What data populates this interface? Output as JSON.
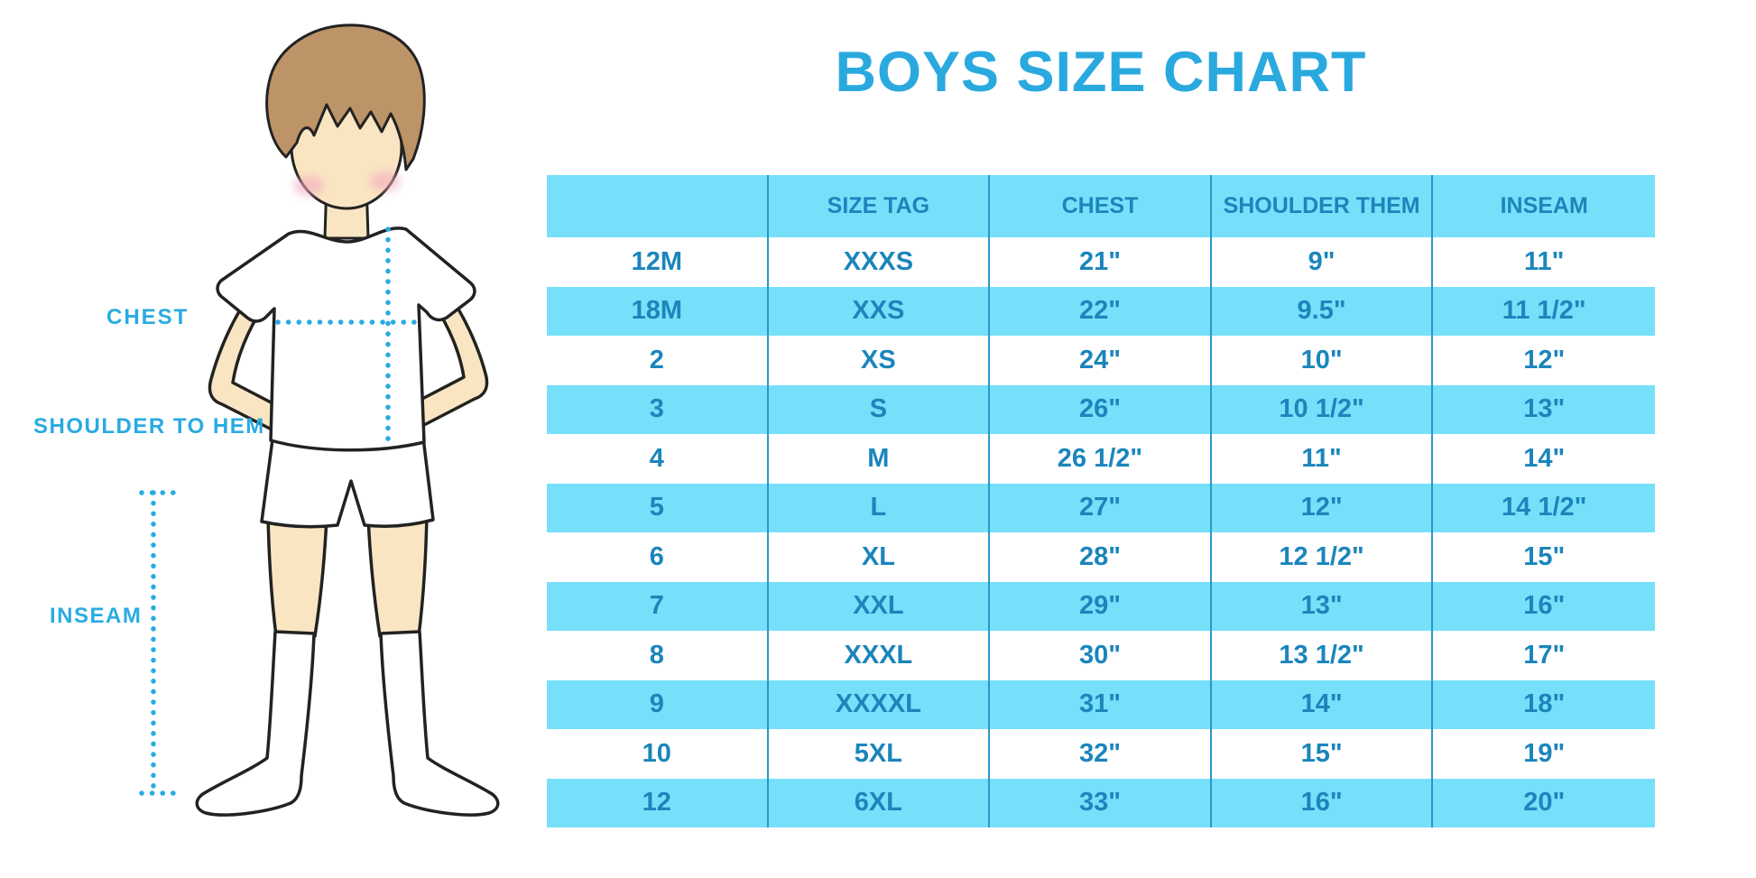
{
  "title": "BOYS SIZE CHART",
  "figure": {
    "description": "outline drawing of a boy in white tee, shorts and knee socks with dotted measurement guides",
    "labels": {
      "chest": "CHEST",
      "shoulder_to_hem": "SHOULDER TO HEM",
      "inseam": "INSEAM"
    }
  },
  "chart_data": {
    "type": "table",
    "title": "BOYS SIZE CHART",
    "columns": [
      "",
      "SIZE TAG",
      "CHEST",
      "SHOULDER THEM",
      "INSEAM"
    ],
    "rows": [
      [
        "12M",
        "XXXS",
        "21\"",
        "9\"",
        "11\""
      ],
      [
        "18M",
        "XXS",
        "22\"",
        "9.5\"",
        "11 1/2\""
      ],
      [
        "2",
        "XS",
        "24\"",
        "10\"",
        "12\""
      ],
      [
        "3",
        "S",
        "26\"",
        "10 1/2\"",
        "13\""
      ],
      [
        "4",
        "M",
        "26 1/2\"",
        "11\"",
        "14\""
      ],
      [
        "5",
        "L",
        "27\"",
        "12\"",
        "14 1/2\""
      ],
      [
        "6",
        "XL",
        "28\"",
        "12 1/2\"",
        "15\""
      ],
      [
        "7",
        "XXL",
        "29\"",
        "13\"",
        "16\""
      ],
      [
        "8",
        "XXXL",
        "30\"",
        "13 1/2\"",
        "17\""
      ],
      [
        "9",
        "XXXXL",
        "31\"",
        "14\"",
        "18\""
      ],
      [
        "10",
        "5XL",
        "32\"",
        "15\"",
        "19\""
      ],
      [
        "12",
        "6XL",
        "33\"",
        "16\"",
        "20\""
      ]
    ],
    "layout_hints": {
      "header_row_highlighted": true,
      "striping": "data rows alternate white / light blue starting white",
      "column_dividers": "thin dark blue vertical lines between all 5 columns",
      "grid": "no horizontal lines"
    }
  },
  "colors": {
    "accent_title": "#2AA9DF",
    "label_blue": "#29ABE2",
    "row_highlight": "#76E0FA",
    "cell_text": "#1B85BC",
    "column_divider": "#2B97C8",
    "hair_brown": "#BC9468",
    "skin": "#FAE5C2",
    "cheek_pink": "#F3A9BD"
  }
}
